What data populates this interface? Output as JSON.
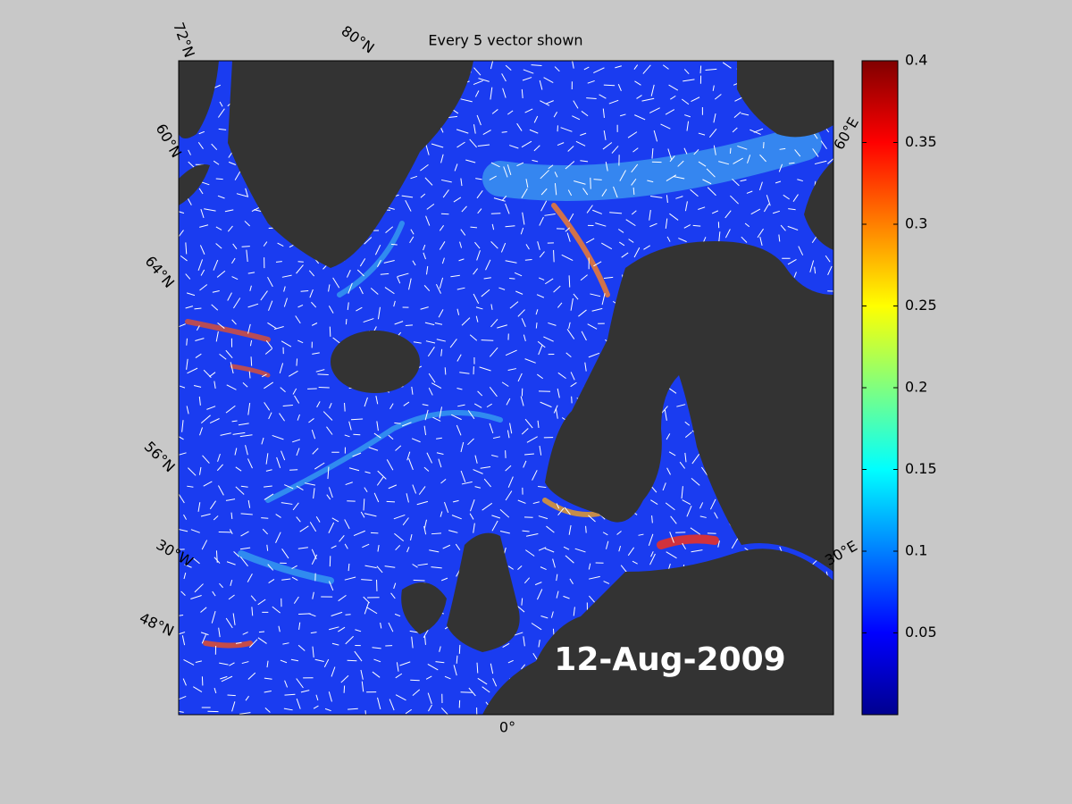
{
  "title": "Every 5 vector shown",
  "map": {
    "graticule_labels": [
      "72°N",
      "80°N",
      "60°N",
      "64°N",
      "56°N",
      "30°W",
      "48°N",
      "0°",
      "30°E",
      "60°E"
    ],
    "date": "12-Aug-2009"
  },
  "colorbar": {
    "lim": [
      0,
      0.4
    ],
    "ticks": [
      0.05,
      0.1,
      0.15,
      0.2,
      0.25,
      0.3,
      0.35,
      0.4
    ]
  }
}
